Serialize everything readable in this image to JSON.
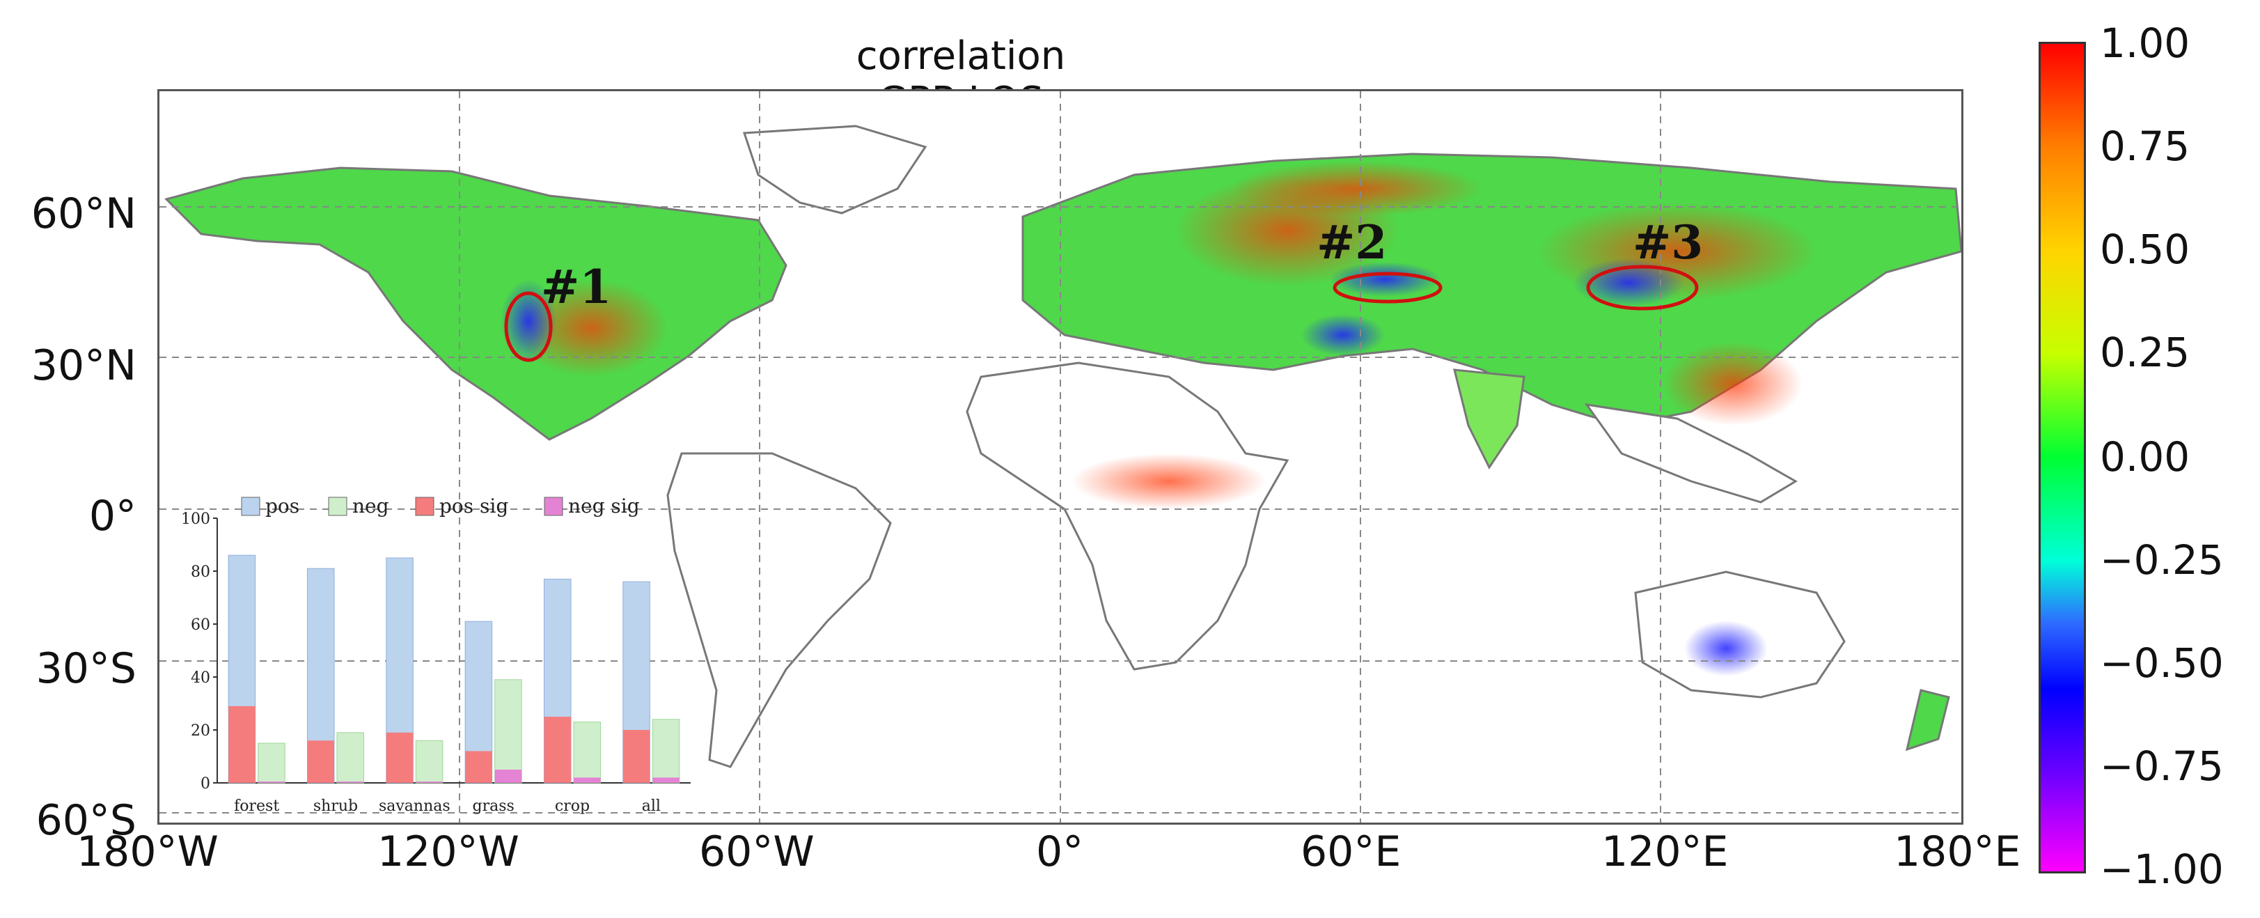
{
  "title": "correlation GPP-LOS",
  "lat_labels": [
    "60°N",
    "30°N",
    "0°",
    "30°S",
    "60°S"
  ],
  "lon_labels": [
    "180°W",
    "120°W",
    "60°W",
    "0°",
    "60°E",
    "120°E",
    "180°E"
  ],
  "colorbar": {
    "ticks": [
      "1.00",
      "0.75",
      "0.50",
      "0.25",
      "0.00",
      "−0.25",
      "−0.50",
      "−0.75",
      "−1.00"
    ],
    "colors": [
      "#ff0000",
      "#ff7f00",
      "#ffd400",
      "#c6ff00",
      "#00ff33",
      "#00ffd9",
      "#0000ff",
      "#6a00ff",
      "#ff00ff"
    ]
  },
  "region_labels": [
    "#1",
    "#2",
    "#3"
  ],
  "chart_data": {
    "type": "bar",
    "categories": [
      "forest",
      "shrub",
      "savannas",
      "grass",
      "crop",
      "all"
    ],
    "ylim": [
      0,
      100
    ],
    "yticks": [
      "0",
      "20",
      "40",
      "60",
      "80",
      "100"
    ],
    "legend": "top",
    "series": [
      {
        "name": "pos",
        "values": [
          86,
          81,
          85,
          61,
          77,
          76
        ],
        "color": "#bcd3ee"
      },
      {
        "name": "neg",
        "values": [
          15,
          19,
          16,
          39,
          23,
          24
        ],
        "color": "#cfeecb"
      },
      {
        "name": "pos sig",
        "values": [
          29,
          16,
          19,
          12,
          25,
          20
        ],
        "color": "#f47c7c"
      },
      {
        "name": "neg sig",
        "values": [
          0.5,
          0.5,
          0.5,
          5,
          2,
          2
        ],
        "color": "#e483d4"
      }
    ]
  }
}
